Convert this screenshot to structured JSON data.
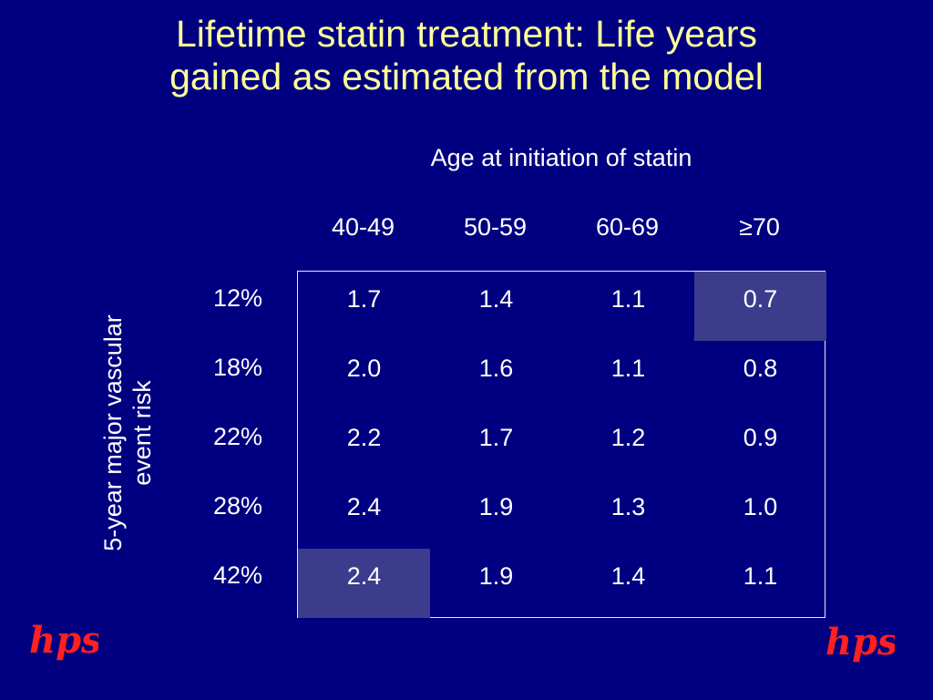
{
  "title_lines": [
    "Lifetime statin treatment: Life years",
    "gained as estimated from the model"
  ],
  "chart_data": {
    "type": "table",
    "column_header": "Age at initiation of statin",
    "row_header_lines": [
      "5-year major vascular",
      "event risk"
    ],
    "columns": [
      "40-49",
      "50-59",
      "60-69",
      "≥70"
    ],
    "rows": [
      "12%",
      "18%",
      "22%",
      "28%",
      "42%"
    ],
    "values": [
      [
        "1.7",
        "1.4",
        "1.1",
        "0.7"
      ],
      [
        "2.0",
        "1.6",
        "1.1",
        "0.8"
      ],
      [
        "2.2",
        "1.7",
        "1.2",
        "0.9"
      ],
      [
        "2.4",
        "1.9",
        "1.3",
        "1.0"
      ],
      [
        "2.4",
        "1.9",
        "1.4",
        "1.1"
      ]
    ],
    "highlighted_cells": [
      [
        0,
        3
      ],
      [
        4,
        0
      ]
    ],
    "highlight_color": "#3c3c8c"
  },
  "colors": {
    "background": "#000080",
    "title": "#ffff99",
    "text": "#ffffff",
    "logo": "#ff2020"
  },
  "logos": [
    {
      "name": "hps-logo-left",
      "text": "hps"
    },
    {
      "name": "hps-logo-right",
      "text": "hps"
    }
  ]
}
